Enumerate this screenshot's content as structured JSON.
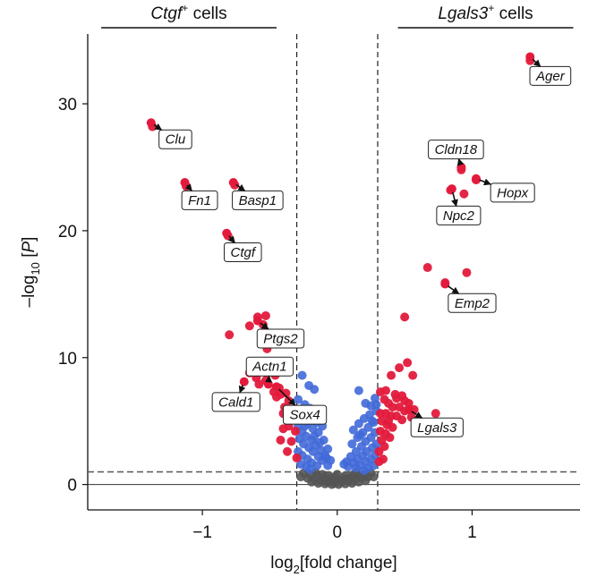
{
  "chart_data": {
    "type": "scatter",
    "xlabel_prefix": "log",
    "xlabel_sub": "2",
    "xlabel_rest": "[fold change]",
    "ylabel_prefix": "–log",
    "ylabel_sub": "10",
    "ylabel_open": " [",
    "ylabel_var": "P",
    "ylabel_close": "]",
    "xlim": [
      -1.85,
      1.8
    ],
    "ylim": [
      -2,
      35.5
    ],
    "x_ticks": [
      -1,
      0,
      1
    ],
    "x_tick_labels": [
      "−1",
      "0",
      "1"
    ],
    "y_ticks": [
      0,
      10,
      20,
      30
    ],
    "y_tick_labels": [
      "0",
      "10",
      "20",
      "30"
    ],
    "grid": false,
    "fc_thresholds": [
      -0.3,
      0.3
    ],
    "p_threshold": 1.0,
    "groups": [
      {
        "gene": "Ctgf",
        "sup": "+",
        "suffix": " cells",
        "x_range": [
          -1.75,
          -0.45
        ]
      },
      {
        "gene": "Lgals3",
        "sup": "+",
        "suffix": " cells",
        "x_range": [
          0.45,
          1.75
        ]
      }
    ],
    "colors": {
      "significant": "#e31a3c",
      "fold_change_only": "#4169d8",
      "not_significant": "#555555",
      "threshold_line": "#222222"
    },
    "labeled_points": [
      {
        "gene": "Ager",
        "x": 1.43,
        "y": 33.7,
        "lx": 1.58,
        "ly": 32.2
      },
      {
        "gene": "Clu",
        "x": -1.38,
        "y": 28.5,
        "lx": -1.2,
        "ly": 27.2
      },
      {
        "gene": "Cldn18",
        "x": 0.92,
        "y": 25.0,
        "lx": 0.88,
        "ly": 26.4
      },
      {
        "gene": "Hopx",
        "x": 1.03,
        "y": 24.1,
        "lx": 1.3,
        "ly": 23.0
      },
      {
        "gene": "Npc2",
        "x": 0.85,
        "y": 23.3,
        "lx": 0.9,
        "ly": 21.2
      },
      {
        "gene": "Fn1",
        "x": -1.13,
        "y": 23.8,
        "lx": -1.02,
        "ly": 22.4
      },
      {
        "gene": "Basp1",
        "x": -0.77,
        "y": 23.8,
        "lx": -0.59,
        "ly": 22.4
      },
      {
        "gene": "Ctgf",
        "x": -0.82,
        "y": 19.8,
        "lx": -0.7,
        "ly": 18.3
      },
      {
        "gene": "Emp2",
        "x": 0.8,
        "y": 15.8,
        "lx": 1.0,
        "ly": 14.3
      },
      {
        "gene": "Ptgs2",
        "x": -0.59,
        "y": 12.9,
        "lx": -0.42,
        "ly": 11.5
      },
      {
        "gene": "Actn1",
        "x": -0.51,
        "y": 7.9,
        "lx": -0.5,
        "ly": 9.3
      },
      {
        "gene": "Cald1",
        "x": -0.69,
        "y": 8.1,
        "lx": -0.75,
        "ly": 6.5
      },
      {
        "gene": "Sox4",
        "x": -0.45,
        "y": 7.7,
        "lx": -0.24,
        "ly": 5.5
      },
      {
        "gene": "Lgals3",
        "x": 0.53,
        "y": 5.9,
        "lx": 0.74,
        "ly": 4.5
      }
    ],
    "significant_points": [
      [
        -1.37,
        28.2
      ],
      [
        -1.12,
        23.5
      ],
      [
        -0.76,
        23.6
      ],
      [
        -0.81,
        19.6
      ],
      [
        -0.59,
        13.2
      ],
      [
        -0.53,
        13.3
      ],
      [
        -0.55,
        12.6
      ],
      [
        -0.65,
        12.5
      ],
      [
        -0.8,
        11.8
      ],
      [
        -0.56,
        11.3
      ],
      [
        -0.49,
        11.5
      ],
      [
        -0.52,
        10.7
      ],
      [
        -0.46,
        8.6
      ],
      [
        -0.53,
        8.2
      ],
      [
        -0.58,
        7.9
      ],
      [
        -0.6,
        8.4
      ],
      [
        -0.65,
        8.8
      ],
      [
        -0.43,
        7.6
      ],
      [
        -0.42,
        7.1
      ],
      [
        -0.47,
        7.3
      ],
      [
        -0.38,
        7.2
      ],
      [
        -0.36,
        6.6
      ],
      [
        -0.39,
        6.1
      ],
      [
        -0.33,
        5.8
      ],
      [
        -0.35,
        5.3
      ],
      [
        -0.4,
        4.4
      ],
      [
        -0.36,
        4.6
      ],
      [
        -0.31,
        4.2
      ],
      [
        -0.34,
        3.4
      ],
      [
        -0.42,
        3.5
      ],
      [
        -0.37,
        2.6
      ],
      [
        -0.3,
        2.1
      ],
      [
        -0.45,
        6.9
      ],
      [
        -0.4,
        5.6
      ],
      [
        1.43,
        33.4
      ],
      [
        0.92,
        24.8
      ],
      [
        1.03,
        24.0
      ],
      [
        0.84,
        23.2
      ],
      [
        0.94,
        22.9
      ],
      [
        0.67,
        17.1
      ],
      [
        0.96,
        16.7
      ],
      [
        0.8,
        15.9
      ],
      [
        0.5,
        13.2
      ],
      [
        0.73,
        5.6
      ],
      [
        0.52,
        9.6
      ],
      [
        0.46,
        9.2
      ],
      [
        0.56,
        8.6
      ],
      [
        0.4,
        8.6
      ],
      [
        0.32,
        7.3
      ],
      [
        0.36,
        7.4
      ],
      [
        0.43,
        7.1
      ],
      [
        0.48,
        7.0
      ],
      [
        0.44,
        6.8
      ],
      [
        0.5,
        6.6
      ],
      [
        0.53,
        6.4
      ],
      [
        0.57,
        5.9
      ],
      [
        0.35,
        6.7
      ],
      [
        0.38,
        6.4
      ],
      [
        0.41,
        6.1
      ],
      [
        0.46,
        6.1
      ],
      [
        0.5,
        5.8
      ],
      [
        0.32,
        5.6
      ],
      [
        0.36,
        5.6
      ],
      [
        0.4,
        5.4
      ],
      [
        0.44,
        5.4
      ],
      [
        0.48,
        5.1
      ],
      [
        0.33,
        5.0
      ],
      [
        0.37,
        4.7
      ],
      [
        0.41,
        4.5
      ],
      [
        0.32,
        4.2
      ],
      [
        0.36,
        4.0
      ],
      [
        0.39,
        3.7
      ],
      [
        0.33,
        3.5
      ],
      [
        0.35,
        3.0
      ],
      [
        0.31,
        2.6
      ],
      [
        0.34,
        2.0
      ],
      [
        0.31,
        1.8
      ],
      [
        0.38,
        5.0
      ],
      [
        0.55,
        5.3
      ]
    ],
    "blue_points": [
      [
        -0.26,
        8.6
      ],
      [
        -0.21,
        7.8
      ],
      [
        -0.17,
        7.5
      ],
      [
        -0.12,
        5.6
      ],
      [
        -0.29,
        6.7
      ],
      [
        -0.24,
        6.3
      ],
      [
        -0.2,
        6.0
      ],
      [
        -0.15,
        4.9
      ],
      [
        -0.28,
        5.6
      ],
      [
        -0.25,
        5.2
      ],
      [
        -0.22,
        4.8
      ],
      [
        -0.18,
        4.4
      ],
      [
        -0.14,
        4.1
      ],
      [
        -0.1,
        3.5
      ],
      [
        -0.07,
        2.8
      ],
      [
        -0.29,
        4.6
      ],
      [
        -0.26,
        4.2
      ],
      [
        -0.23,
        3.8
      ],
      [
        -0.19,
        3.5
      ],
      [
        -0.16,
        3.1
      ],
      [
        -0.12,
        2.7
      ],
      [
        -0.09,
        2.3
      ],
      [
        -0.05,
        1.9
      ],
      [
        -0.28,
        3.6
      ],
      [
        -0.25,
        3.2
      ],
      [
        -0.21,
        2.9
      ],
      [
        -0.18,
        2.6
      ],
      [
        -0.14,
        2.2
      ],
      [
        -0.11,
        1.9
      ],
      [
        -0.07,
        1.5
      ],
      [
        -0.29,
        2.6
      ],
      [
        -0.26,
        2.3
      ],
      [
        -0.22,
        2.0
      ],
      [
        -0.19,
        1.7
      ],
      [
        -0.15,
        1.5
      ],
      [
        -0.27,
        1.6
      ],
      [
        -0.23,
        1.4
      ],
      [
        -0.2,
        1.2
      ],
      [
        -0.24,
        4.6
      ],
      [
        -0.17,
        3.8
      ],
      [
        -0.2,
        5.3
      ],
      [
        -0.11,
        4.6
      ],
      [
        -0.13,
        3.3
      ],
      [
        -0.08,
        2.1
      ],
      [
        0.16,
        7.4
      ],
      [
        0.21,
        6.4
      ],
      [
        0.28,
        6.8
      ],
      [
        0.25,
        6.2
      ],
      [
        0.29,
        5.8
      ],
      [
        0.24,
        5.5
      ],
      [
        0.2,
        5.2
      ],
      [
        0.16,
        4.8
      ],
      [
        0.27,
        4.9
      ],
      [
        0.23,
        4.5
      ],
      [
        0.19,
        4.1
      ],
      [
        0.15,
        3.7
      ],
      [
        0.11,
        3.2
      ],
      [
        0.28,
        4.1
      ],
      [
        0.25,
        3.7
      ],
      [
        0.21,
        3.4
      ],
      [
        0.18,
        3.0
      ],
      [
        0.14,
        2.6
      ],
      [
        0.1,
        2.2
      ],
      [
        0.07,
        1.8
      ],
      [
        0.29,
        3.2
      ],
      [
        0.26,
        2.9
      ],
      [
        0.22,
        2.6
      ],
      [
        0.19,
        2.3
      ],
      [
        0.15,
        2.0
      ],
      [
        0.12,
        1.7
      ],
      [
        0.08,
        1.4
      ],
      [
        0.28,
        2.3
      ],
      [
        0.25,
        2.0
      ],
      [
        0.21,
        1.8
      ],
      [
        0.17,
        1.5
      ],
      [
        0.14,
        1.3
      ],
      [
        0.27,
        1.5
      ],
      [
        0.23,
        1.3
      ],
      [
        0.2,
        1.1
      ],
      [
        0.29,
        6.3
      ],
      [
        0.26,
        5.0
      ],
      [
        0.12,
        4.3
      ],
      [
        0.05,
        1.6
      ],
      [
        0.17,
        3.9
      ]
    ],
    "gray_points": [
      [
        -0.25,
        0.9
      ],
      [
        -0.2,
        0.8
      ],
      [
        -0.15,
        0.7
      ],
      [
        -0.1,
        0.6
      ],
      [
        -0.05,
        0.5
      ],
      [
        0.0,
        0.4
      ],
      [
        0.05,
        0.5
      ],
      [
        0.1,
        0.6
      ],
      [
        0.15,
        0.7
      ],
      [
        0.2,
        0.8
      ],
      [
        0.25,
        0.9
      ],
      [
        -0.22,
        0.5
      ],
      [
        -0.17,
        0.4
      ],
      [
        -0.12,
        0.3
      ],
      [
        -0.07,
        0.2
      ],
      [
        -0.02,
        0.1
      ],
      [
        0.03,
        0.2
      ],
      [
        0.08,
        0.3
      ],
      [
        0.13,
        0.4
      ],
      [
        0.18,
        0.5
      ],
      [
        0.23,
        0.6
      ],
      [
        -0.19,
        0.2
      ],
      [
        -0.14,
        0.1
      ],
      [
        -0.09,
        0.05
      ],
      [
        -0.04,
        0.0
      ],
      [
        0.01,
        0.0
      ],
      [
        0.06,
        0.05
      ],
      [
        0.11,
        0.1
      ],
      [
        0.16,
        0.2
      ],
      [
        0.21,
        0.3
      ],
      [
        -0.11,
        0.8
      ],
      [
        -0.06,
        0.7
      ],
      [
        0.0,
        0.8
      ],
      [
        0.06,
        0.7
      ],
      [
        0.12,
        0.8
      ],
      [
        -0.03,
        0.3
      ],
      [
        0.03,
        0.35
      ],
      [
        -0.08,
        0.45
      ],
      [
        0.09,
        0.45
      ],
      [
        -0.27,
        0.6
      ],
      [
        0.27,
        0.6
      ],
      [
        -0.01,
        0.6
      ],
      [
        0.14,
        0.95
      ],
      [
        -0.16,
        0.95
      ]
    ]
  }
}
